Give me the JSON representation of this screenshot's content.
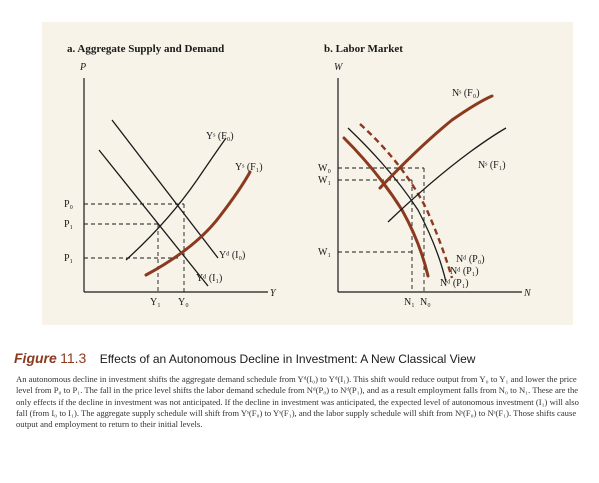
{
  "panel_a": {
    "title": "a. Aggregate Supply and Demand",
    "y_axis": "P",
    "x_axis": "Y",
    "labels": {
      "ys0": "Yˢ (F₀)",
      "ys1": "Yˢ (F₁)",
      "yd0": "Yᵈ (I₀)",
      "yd1": "Yᵈ (I₁)",
      "p0": "P₀",
      "p1a": "P₁",
      "p1b": "P₁",
      "y1": "Y₁",
      "y0": "Y₀"
    }
  },
  "panel_b": {
    "title": "b. Labor Market",
    "y_axis": "W",
    "x_axis": "N",
    "labels": {
      "ns0": "Nˢ (F₀)",
      "ns1": "Nˢ (F₁)",
      "nd0": "Nᵈ (P₀)",
      "nd1a": "Nᵈ (P₁)",
      "nd1b": "Nᵈ (P₁)",
      "w0": "W₀",
      "w1a": "W₁",
      "w1b": "W₁",
      "n1": "N₁",
      "n0": "N₀"
    }
  },
  "caption": {
    "figure_word": "Figure",
    "figure_number": "11.3",
    "title": "Effects of an Autonomous Decline in Investment: A New Classical View",
    "body": "An autonomous decline in investment shifts the aggregate demand schedule from Yᵈ(I₀) to Yᵈ(I₁). This shift would reduce output from Y₀ to Y₁ and lower the price level from P₀ to P₁. The fall in the price level shifts the labor demand schedule from Nᵈ(P₀) to Nᵈ(P₁), and as a result employment falls from N₀ to N₁. These are the only effects if the decline in investment was not anticipated. If the decline in investment was anticipated, the expected level of autonomous investment (I₁) will also fall (from I₀ to I₁). The aggregate supply schedule will shift from Yˢ(F₀) to Yˢ(F₁), and the labor supply schedule will shift from Nˢ(F₀) to Nˢ(F₁). Those shifts cause output and employment to return to their initial levels."
  }
}
